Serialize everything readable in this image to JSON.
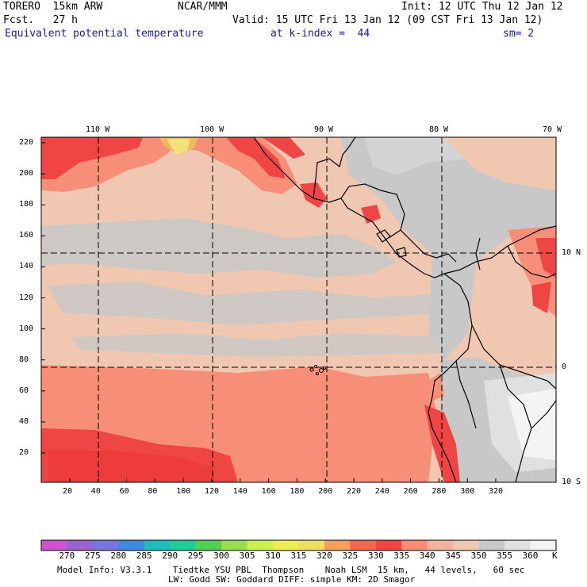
{
  "header": {
    "model": "TORERO  15km ARW",
    "org": "NCAR/MMM",
    "init": "Init: 12 UTC Thu 12 Jan 12",
    "fcst": "Fcst.   27 h",
    "valid": "Valid: 15 UTC Fri 13 Jan 12 (09 CST Fri 13 Jan 12)",
    "field": "Equivalent potential temperature",
    "level": "at k-index =  44",
    "smooth": "sm= 2"
  },
  "axes": {
    "x_ticks": [
      "20",
      "40",
      "60",
      "80",
      "100",
      "120",
      "140",
      "160",
      "180",
      "200",
      "220",
      "240",
      "260",
      "280",
      "300",
      "320"
    ],
    "y_ticks": [
      "20",
      "40",
      "60",
      "80",
      "100",
      "120",
      "140",
      "160",
      "180",
      "200",
      "220"
    ],
    "lon_labels": [
      "110 W",
      "100 W",
      "90 W",
      "80 W",
      "70 W"
    ],
    "lat_labels": [
      "10 N",
      "0",
      "10 S"
    ]
  },
  "colorbar": {
    "labels": [
      "270",
      "275",
      "280",
      "285",
      "290",
      "295",
      "300",
      "305",
      "310",
      "315",
      "320",
      "325",
      "330",
      "335",
      "340",
      "345",
      "350",
      "355",
      "360"
    ],
    "unit": "K",
    "colors": [
      "#cc55cc",
      "#9966cc",
      "#7777dd",
      "#4488dd",
      "#22bbbb",
      "#22cc99",
      "#55cc55",
      "#99dd55",
      "#ccee55",
      "#eeee55",
      "#eedd66",
      "#f2a060",
      "#f06850",
      "#f04545",
      "#f78f78",
      "#f0b39d",
      "#f0c8b2",
      "#c8c8c8",
      "#e0e0e0",
      "#f4f4f4"
    ]
  },
  "info": {
    "line1": "Model Info: V3.3.1    Tiedtke YSU PBL  Thompson    Noah LSM  15 km,   44 levels,   60 sec",
    "line2": "LW: Godd SW: Goddard DIFF: simple KM: 2D Smagor"
  }
}
